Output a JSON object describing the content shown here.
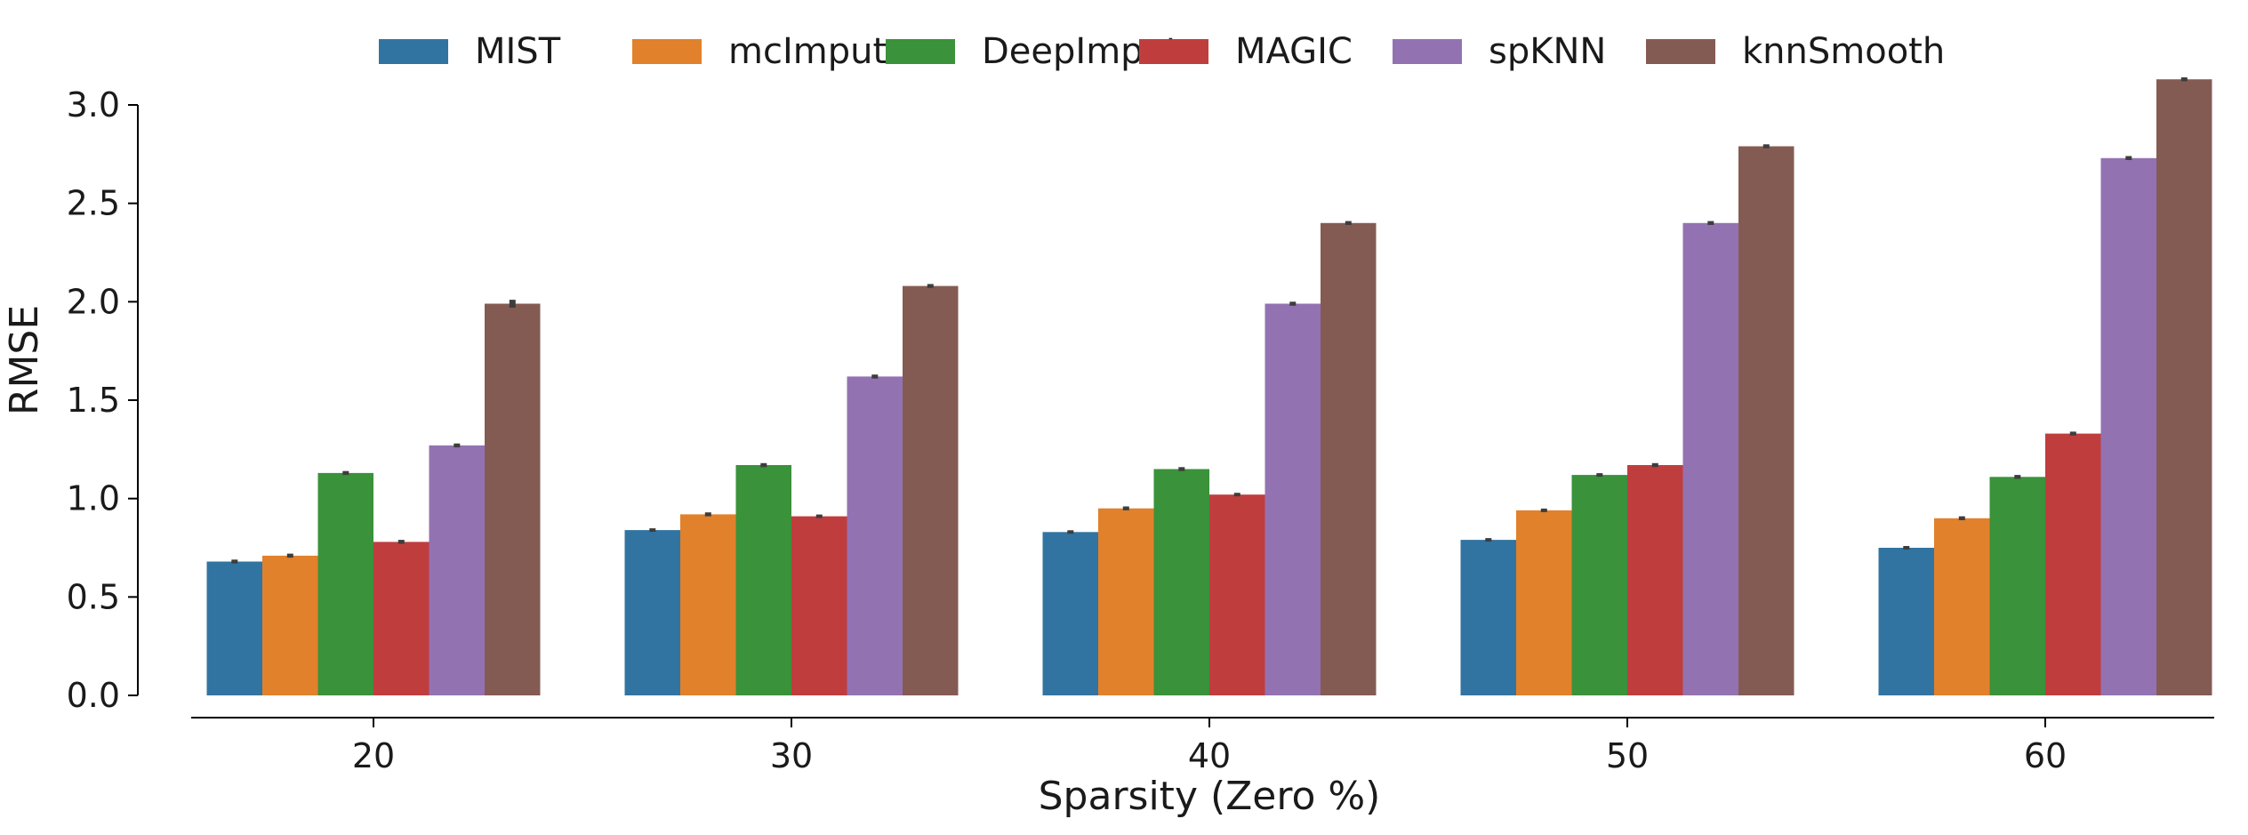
{
  "chart_data": {
    "type": "bar",
    "title": "",
    "xlabel": "Sparsity (Zero %)",
    "ylabel": "RMSE",
    "categories": [
      "20",
      "30",
      "40",
      "50",
      "60"
    ],
    "ylim": [
      0,
      3.0
    ],
    "yticks": [
      "0.0",
      "0.5",
      "1.0",
      "1.5",
      "2.0",
      "2.5",
      "3.0"
    ],
    "grid": false,
    "legend_position": "top",
    "series": [
      {
        "name": "MIST",
        "color": "#3274a1",
        "values": [
          0.68,
          0.84,
          0.83,
          0.79,
          0.75
        ],
        "error": [
          0.01,
          0.0,
          0.0,
          0.0,
          0.0
        ]
      },
      {
        "name": "mcImpute",
        "color": "#e1812c",
        "values": [
          0.71,
          0.92,
          0.95,
          0.94,
          0.9
        ],
        "error": [
          0.01,
          0.01,
          0.01,
          0.0,
          0.01
        ]
      },
      {
        "name": "DeepImpute",
        "color": "#3a923a",
        "values": [
          1.13,
          1.17,
          1.15,
          1.12,
          1.11
        ],
        "error": [
          0.01,
          0.01,
          0.01,
          0.0,
          0.01
        ]
      },
      {
        "name": "MAGIC",
        "color": "#c03d3e",
        "values": [
          0.78,
          0.91,
          1.02,
          1.17,
          1.33
        ],
        "error": [
          0.01,
          0.0,
          0.0,
          0.01,
          0.01
        ]
      },
      {
        "name": "spKNN",
        "color": "#9372b2",
        "values": [
          1.27,
          1.62,
          1.99,
          2.4,
          2.73
        ],
        "error": [
          0.01,
          0.01,
          0.01,
          0.01,
          0.01
        ]
      },
      {
        "name": "knnSmooth",
        "color": "#845b53",
        "values": [
          1.99,
          2.08,
          2.4,
          2.79,
          3.13
        ],
        "error": [
          0.02,
          0.01,
          0.01,
          0.01,
          0.01
        ]
      }
    ]
  }
}
